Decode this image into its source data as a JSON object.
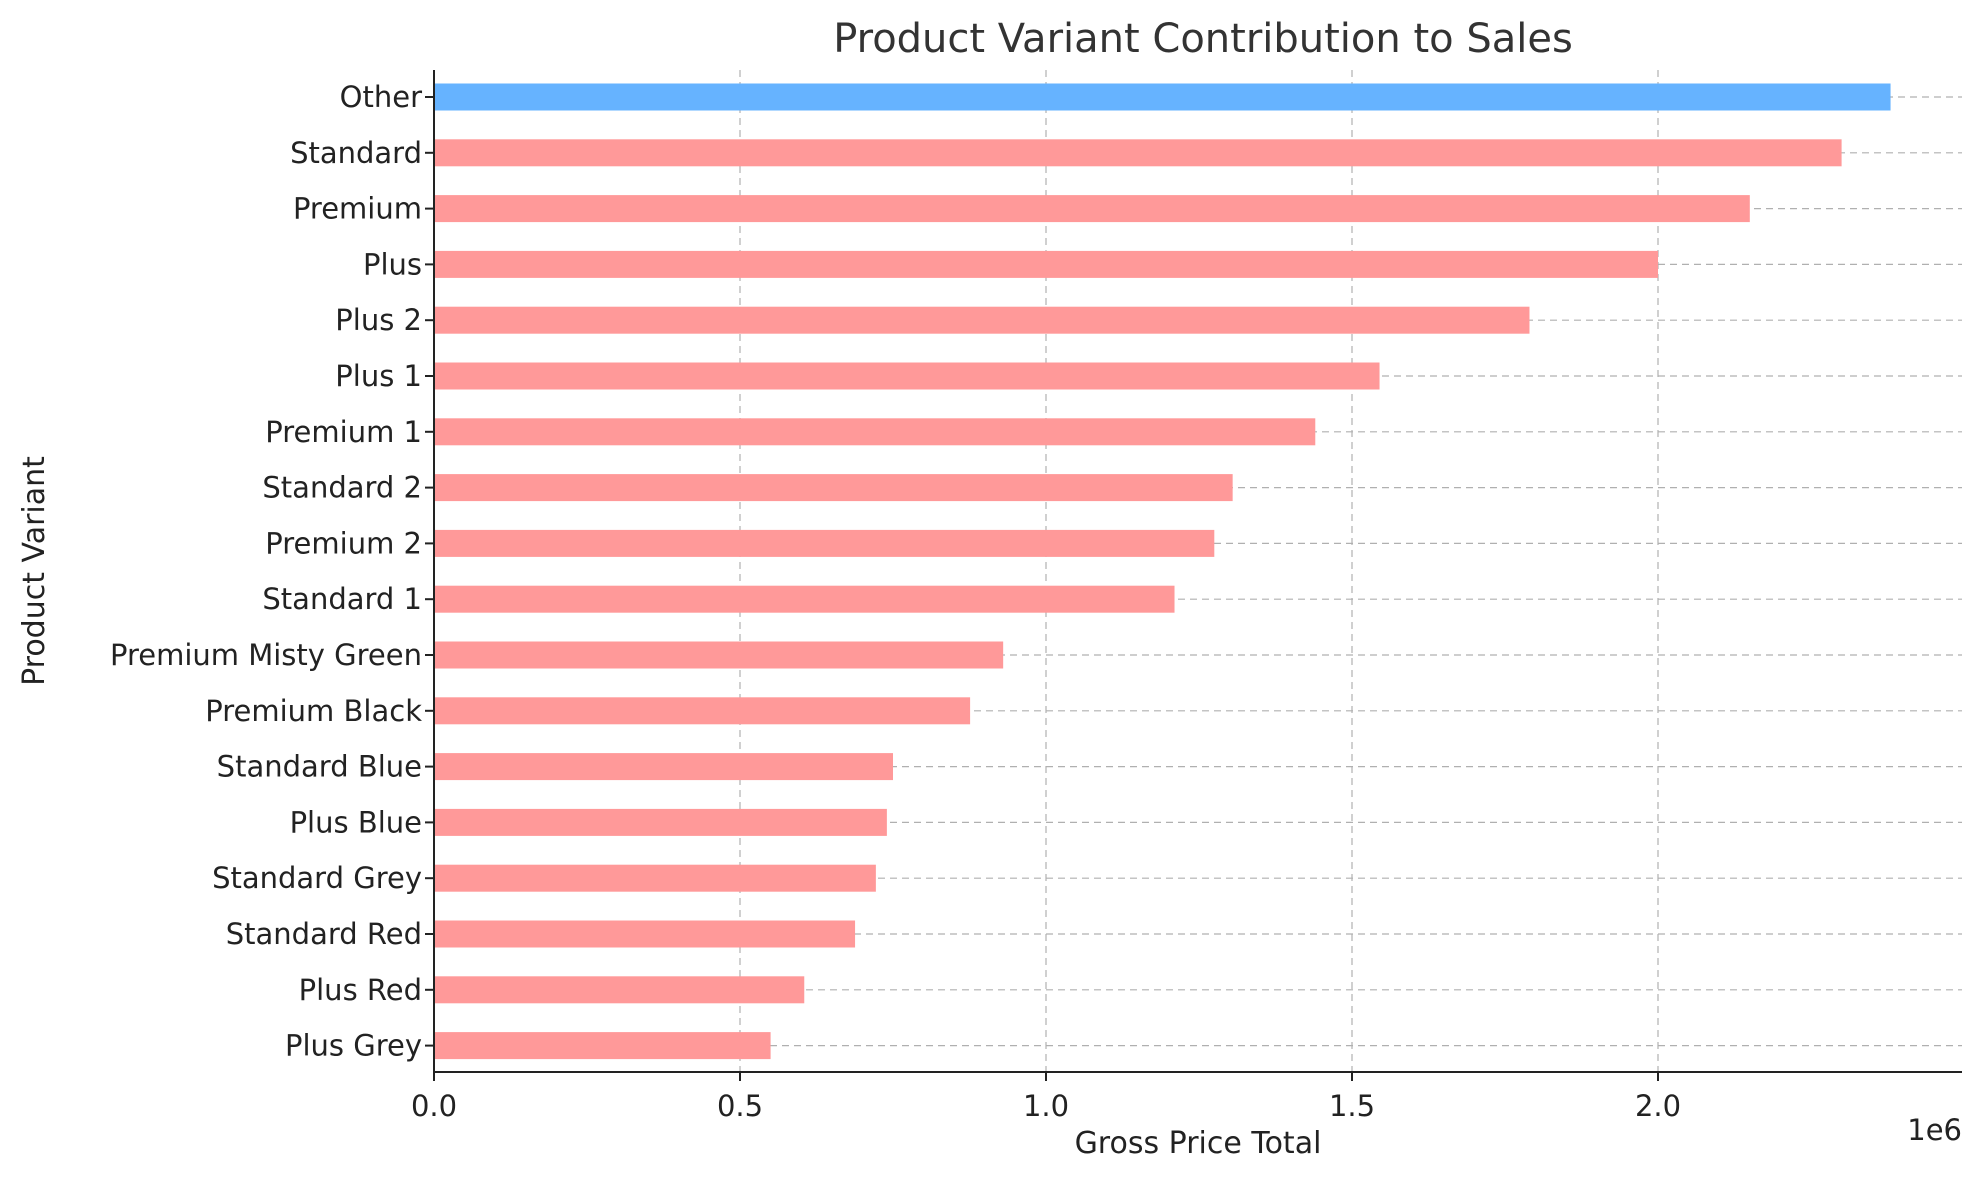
{
  "chart_data": {
    "type": "bar",
    "orientation": "horizontal",
    "title": "Product Variant Contribution to Sales",
    "xlabel": "Gross Price Total",
    "ylabel": "Product Variant",
    "x_offset_label": "1e6",
    "x_scale": 1000000,
    "xlim": [
      0,
      2.5
    ],
    "xticks": [
      0.0,
      0.5,
      1.0,
      1.5,
      2.0
    ],
    "xtick_labels": [
      "0.0",
      "0.5",
      "1.0",
      "1.5",
      "2.0"
    ],
    "grid": true,
    "categories": [
      "Other",
      "Standard",
      "Premium",
      "Plus",
      "Plus 2",
      "Plus 1",
      "Premium 1",
      "Standard 2",
      "Premium 2",
      "Standard 1",
      "Premium Misty Green",
      "Premium Black",
      "Standard Blue",
      "Plus Blue",
      "Standard Grey",
      "Standard Red",
      "Plus Red",
      "Plus Grey"
    ],
    "values": [
      2.38,
      2.3,
      2.15,
      2.0,
      1.79,
      1.545,
      1.44,
      1.305,
      1.275,
      1.21,
      0.93,
      0.876,
      0.75,
      0.74,
      0.722,
      0.688,
      0.605,
      0.55
    ],
    "colors": {
      "highlight": "#66b3ff",
      "default": "#ff9999",
      "highlight_category": "Other"
    }
  }
}
